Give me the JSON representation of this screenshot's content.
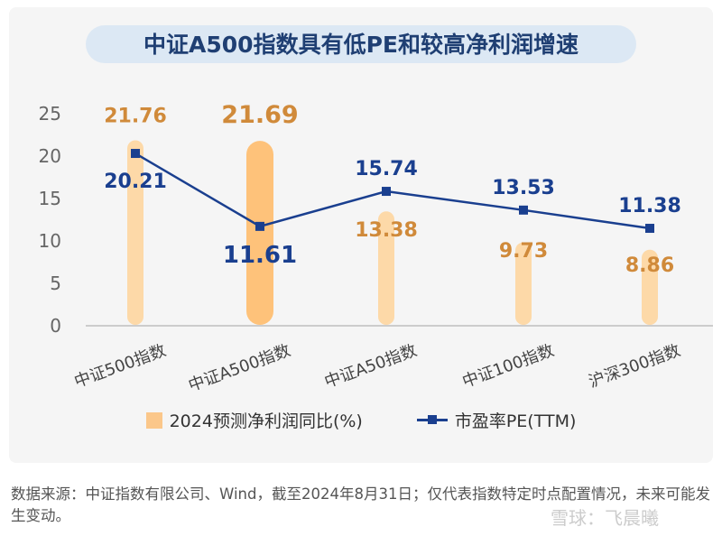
{
  "chart_data": {
    "type": "bar+line",
    "title": "中证A500指数具有低PE和较高净利润增速",
    "categories": [
      "中证500指数",
      "中证A500指数",
      "中证A50指数",
      "中证100指数",
      "沪深300指数"
    ],
    "series": [
      {
        "name": "2024预测净利润同比(%)",
        "type": "bar",
        "values": [
          21.76,
          21.69,
          13.38,
          9.73,
          8.86
        ],
        "color": "#fdd9a8",
        "highlight_color": "#fec27a",
        "highlight_index": 1
      },
      {
        "name": "市盈率PE(TTM)",
        "type": "line",
        "values": [
          20.21,
          11.61,
          15.74,
          13.53,
          11.38
        ],
        "color": "#1a3f8f"
      }
    ],
    "yticks": [
      0,
      5,
      10,
      15,
      20,
      25
    ],
    "ylim": [
      0,
      25
    ],
    "grid": false,
    "legend": "bottom"
  },
  "footnote": "数据来源：中证指数有限公司、Wind，截至2024年8月31日；仅代表指数特定时点配置情况，未来可能发生变动。",
  "watermark": "雪球：飞晨曦"
}
